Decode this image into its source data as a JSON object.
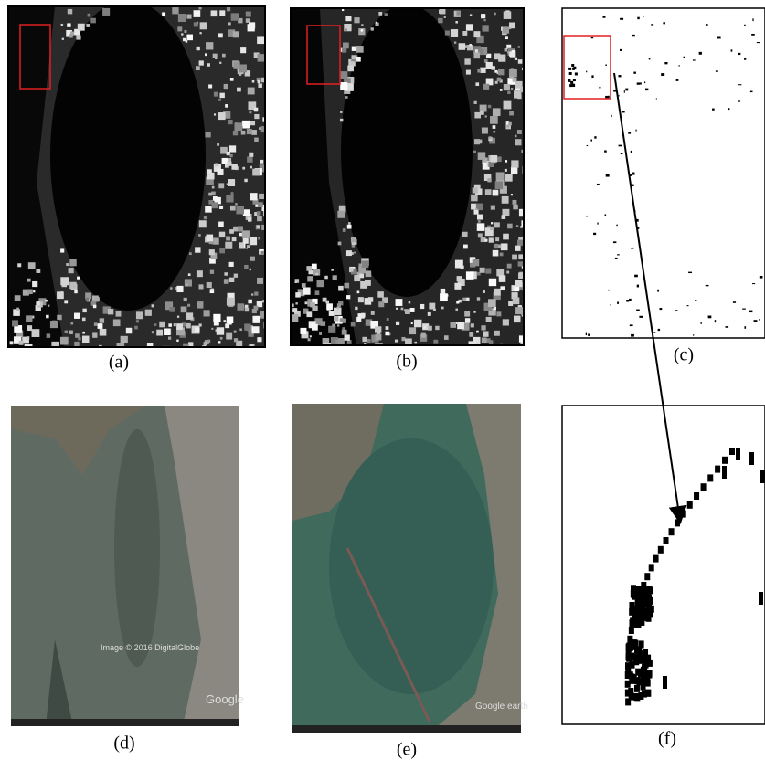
{
  "panels": [
    {
      "label": "(a)"
    },
    {
      "label": "(b)"
    },
    {
      "label": "(c)"
    },
    {
      "label": "(d)"
    },
    {
      "label": "(e)"
    },
    {
      "label": "(f)"
    }
  ],
  "watermarks": {
    "d_credit": "Image © 2016 DigitalGlobe",
    "d_logo": "Google",
    "e_logo": "Google earth"
  }
}
